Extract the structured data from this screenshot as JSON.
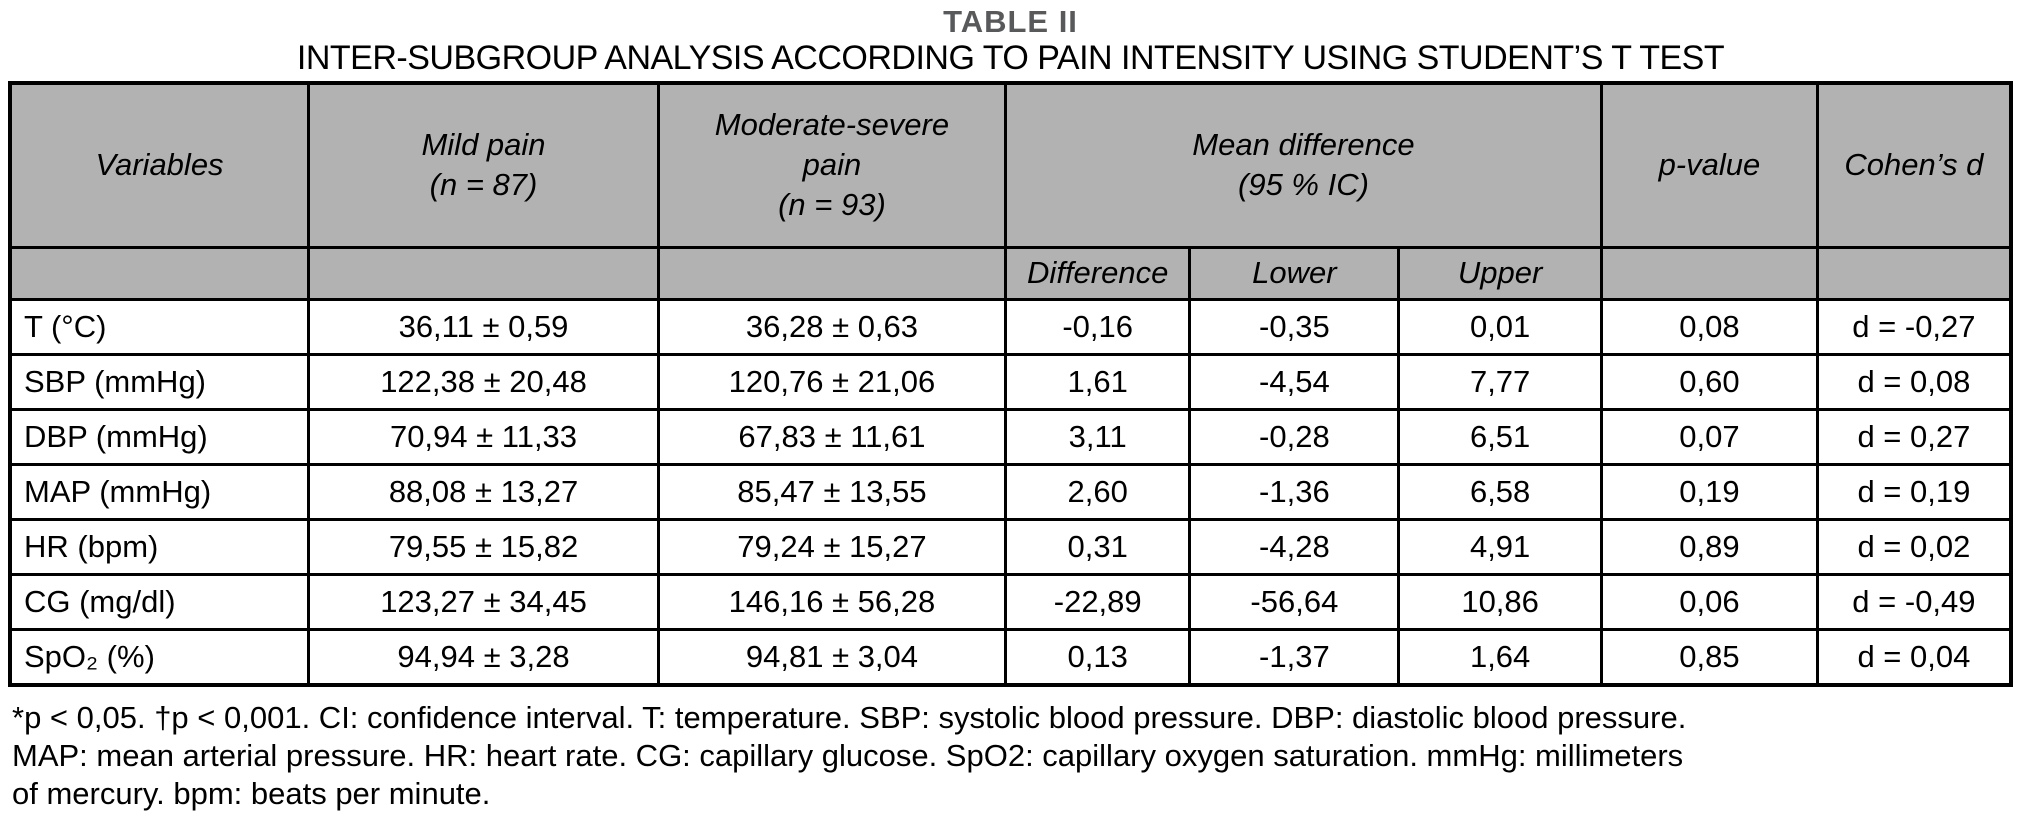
{
  "title": "TABLE II",
  "subtitle": "INTER-SUBGROUP ANALYSIS ACCORDING TO PAIN INTENSITY USING STUDENT’S T TEST",
  "colors": {
    "header_bg": "#b2b2b2",
    "border": "#000000",
    "title_gray": "#58595b"
  },
  "table": {
    "header": {
      "variables": "Variables",
      "mild_pain": "Mild pain\n(n = 87)",
      "moderate_pain": "Moderate-severe\npain\n(n = 93)",
      "mean_difference": "Mean difference\n(95 % IC)",
      "p_value": "p-value",
      "cohens_d": "Cohen’s d",
      "sub": {
        "difference": "Difference",
        "lower": "Lower",
        "upper": "Upper"
      }
    },
    "rows": [
      {
        "cells": [
          "T (°C)",
          "36,11 ± 0,59",
          "36,28 ± 0,63",
          "-0,16",
          "-0,35",
          "0,01",
          "0,08",
          "d = -0,27"
        ]
      },
      {
        "cells": [
          "SBP (mmHg)",
          "122,38 ± 20,48",
          "120,76 ± 21,06",
          "1,61",
          "-4,54",
          "7,77",
          "0,60",
          "d = 0,08"
        ]
      },
      {
        "cells": [
          "DBP (mmHg)",
          "70,94 ± 11,33",
          "67,83 ± 11,61",
          "3,11",
          "-0,28",
          "6,51",
          "0,07",
          "d = 0,27"
        ]
      },
      {
        "cells": [
          "MAP (mmHg)",
          "88,08 ± 13,27",
          "85,47 ± 13,55",
          "2,60",
          "-1,36",
          "6,58",
          "0,19",
          "d = 0,19"
        ]
      },
      {
        "cells": [
          "HR (bpm)",
          "79,55 ± 15,82",
          "79,24 ± 15,27",
          "0,31",
          "-4,28",
          "4,91",
          "0,89",
          "d = 0,02"
        ]
      },
      {
        "cells": [
          "CG (mg/dl)",
          "123,27 ± 34,45",
          "146,16 ± 56,28",
          "-22,89",
          "-56,64",
          "10,86",
          "0,06",
          "d = -0,49"
        ]
      },
      {
        "cells": [
          "SpO₂ (%)",
          "94,94 ± 3,28",
          "94,81 ± 3,04",
          "0,13",
          "-1,37",
          "1,64",
          "0,85",
          "d = 0,04"
        ]
      }
    ]
  },
  "footnote_lines": [
    "*p < 0,05. †p < 0,001. CI: confidence interval. T: temperature. SBP: systolic blood pressure. DBP: diastolic blood pressure.",
    "MAP: mean arterial pressure. HR: heart rate. CG: capillary glucose. SpO2: capillary oxygen saturation. mmHg: millimeters",
    "of mercury. bpm: beats per minute."
  ]
}
